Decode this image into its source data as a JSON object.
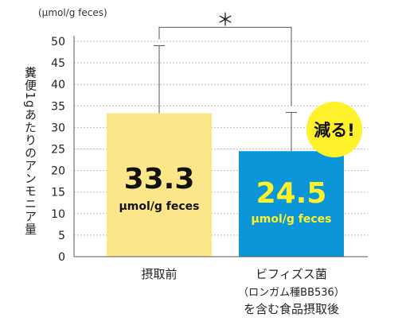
{
  "chart_data": {
    "type": "bar",
    "unit_label": "(μmol/g feces)",
    "ylabel": "糞便1gあたりのアンモニア量",
    "ylim": [
      0,
      50
    ],
    "yticks": [
      "0",
      "5",
      "10",
      "15",
      "20",
      "25",
      "30",
      "35",
      "40",
      "45",
      "50"
    ],
    "grid": true,
    "categories": [
      {
        "lines": [
          "摂取前"
        ]
      },
      {
        "lines": [
          "ビフィズス菌",
          "（ロンガム種BB536）",
          "を含む食品摂取後"
        ]
      }
    ],
    "values": [
      33.3,
      24.5
    ],
    "error_upper": [
      49,
      33.5
    ],
    "bar_colors": [
      "#fde68a",
      "#0a96d8"
    ],
    "value_labels": [
      {
        "value": "33.3",
        "unit": "μmol/g feces",
        "color": "#111111"
      },
      {
        "value": "24.5",
        "unit": "μmol/g feces",
        "color": "#fff22a"
      }
    ],
    "significance": "＊",
    "badge": {
      "text": "減る!",
      "color": "#fff22a"
    }
  }
}
